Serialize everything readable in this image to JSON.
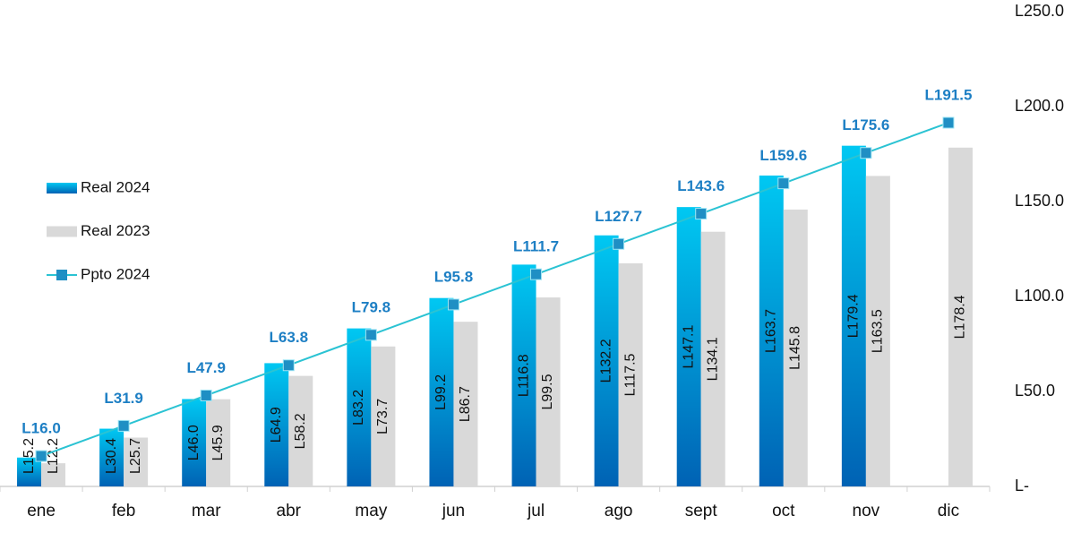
{
  "chart_data": {
    "type": "bar",
    "categories": [
      "ene",
      "feb",
      "mar",
      "abr",
      "may",
      "jun",
      "jul",
      "ago",
      "sept",
      "oct",
      "nov",
      "dic"
    ],
    "series": [
      {
        "name": "Real 2024",
        "color": "#00c8f2",
        "values": [
          15.2,
          30.4,
          46.0,
          64.9,
          83.2,
          99.2,
          116.8,
          132.2,
          147.1,
          163.7,
          179.4,
          null
        ],
        "value_labels": [
          "L15.2",
          "L30.4",
          "L46.0",
          "L64.9",
          "L83.2",
          "L99.2",
          "L116.8",
          "L132.2",
          "L147.1",
          "L163.7",
          "L179.4",
          null
        ]
      },
      {
        "name": "Real 2023",
        "color": "#d9d9d9",
        "values": [
          12.2,
          25.7,
          45.9,
          58.2,
          73.7,
          86.7,
          99.5,
          117.5,
          134.1,
          145.8,
          163.5,
          178.4
        ],
        "value_labels": [
          "L12.2",
          "L25.7",
          "L45.9",
          "L58.2",
          "L73.7",
          "L86.7",
          "L99.5",
          "L117.5",
          "L134.1",
          "L145.8",
          "L163.5",
          "L178.4"
        ]
      },
      {
        "name": "Ppto 2024",
        "type": "line",
        "color": "#2bc3d3",
        "marker_color": "#1f8fc4",
        "values": [
          16.0,
          31.9,
          47.9,
          63.8,
          79.8,
          95.8,
          111.7,
          127.7,
          143.6,
          159.6,
          175.6,
          191.5
        ],
        "value_labels": [
          "L16.0",
          "L31.9",
          "L47.9",
          "L63.8",
          "L79.8",
          "L95.8",
          "L111.7",
          "L127.7",
          "L143.6",
          "L159.6",
          "L175.6",
          "L191.5"
        ]
      }
    ],
    "ylim": [
      0,
      250
    ],
    "yticks": [
      {
        "value": 0,
        "label": "L-"
      },
      {
        "value": 50,
        "label": "L50.0"
      },
      {
        "value": 100,
        "label": "L100.0"
      },
      {
        "value": 150,
        "label": "L150.0"
      },
      {
        "value": 200,
        "label": "L200.0"
      },
      {
        "value": 250,
        "label": "L250.0"
      }
    ],
    "y_axis_side": "right",
    "legend": "left"
  }
}
